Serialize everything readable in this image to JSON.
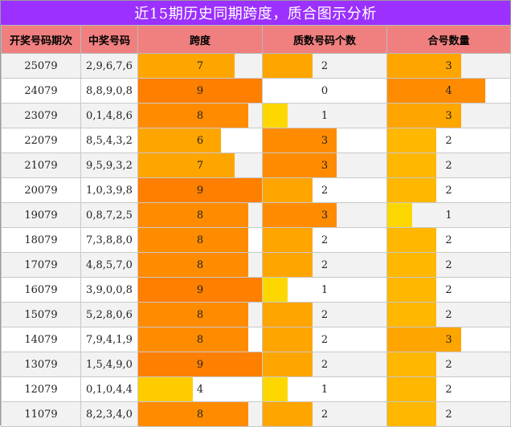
{
  "title": "近15期历史同期跨度，质合图示分析",
  "columns": [
    "开奖号码期次",
    "中奖号码",
    "跨度",
    "质数号码个数",
    "合号数量"
  ],
  "scale": {
    "span_max": 9,
    "prime_max": 5,
    "composite_max": 5
  },
  "colors": {
    "title_bg": "#9b30ff",
    "header_bg": "#f08080",
    "span": {
      "4": "#ffcc00",
      "6": "#ffa500",
      "7": "#ffa500",
      "8": "#ff8c00",
      "9": "#ff7f00"
    },
    "prime": {
      "0": "#ffffff",
      "1": "#ffd700",
      "2": "#ffa500",
      "3": "#ff8c00"
    },
    "composite": {
      "1": "#ffd700",
      "2": "#ffb700",
      "3": "#ffa500",
      "4": "#ff8c00"
    }
  },
  "rows": [
    {
      "issue": "25079",
      "numbers": "2,9,6,7,6",
      "span": "7",
      "primes": "2",
      "composites": "3"
    },
    {
      "issue": "24079",
      "numbers": "8,8,9,0,8",
      "span": "9",
      "primes": "0",
      "composites": "4"
    },
    {
      "issue": "23079",
      "numbers": "0,1,4,8,6",
      "span": "8",
      "primes": "1",
      "composites": "3"
    },
    {
      "issue": "22079",
      "numbers": "8,5,4,3,2",
      "span": "6",
      "primes": "3",
      "composites": "2"
    },
    {
      "issue": "21079",
      "numbers": "9,5,9,3,2",
      "span": "7",
      "primes": "3",
      "composites": "2"
    },
    {
      "issue": "20079",
      "numbers": "1,0,3,9,8",
      "span": "9",
      "primes": "2",
      "composites": "2"
    },
    {
      "issue": "19079",
      "numbers": "0,8,7,2,5",
      "span": "8",
      "primes": "3",
      "composites": "1"
    },
    {
      "issue": "18079",
      "numbers": "7,3,8,8,0",
      "span": "8",
      "primes": "2",
      "composites": "2"
    },
    {
      "issue": "17079",
      "numbers": "4,8,5,7,0",
      "span": "8",
      "primes": "2",
      "composites": "2"
    },
    {
      "issue": "16079",
      "numbers": "3,9,0,0,8",
      "span": "9",
      "primes": "1",
      "composites": "2"
    },
    {
      "issue": "15079",
      "numbers": "5,2,8,0,6",
      "span": "8",
      "primes": "2",
      "composites": "2"
    },
    {
      "issue": "14079",
      "numbers": "7,9,4,1,9",
      "span": "8",
      "primes": "2",
      "composites": "3"
    },
    {
      "issue": "13079",
      "numbers": "1,5,4,9,0",
      "span": "9",
      "primes": "2",
      "composites": "2"
    },
    {
      "issue": "12079",
      "numbers": "0,1,0,4,4",
      "span": "4",
      "primes": "1",
      "composites": "2"
    },
    {
      "issue": "11079",
      "numbers": "8,2,3,4,0",
      "span": "8",
      "primes": "2",
      "composites": "2"
    }
  ]
}
